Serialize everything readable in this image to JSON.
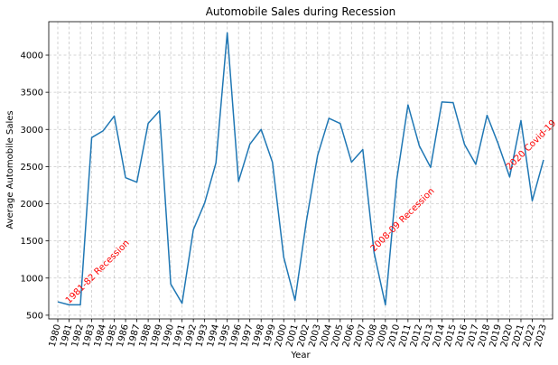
{
  "chart_data": {
    "type": "line",
    "title": "Automobile Sales during Recession",
    "xlabel": "Year",
    "ylabel": "Average Automobile Sales",
    "grid": true,
    "x": [
      1980,
      1981,
      1982,
      1983,
      1984,
      1985,
      1986,
      1987,
      1988,
      1989,
      1990,
      1991,
      1992,
      1993,
      1994,
      1995,
      1996,
      1997,
      1998,
      1999,
      2000,
      2001,
      2002,
      2003,
      2004,
      2005,
      2006,
      2007,
      2008,
      2009,
      2010,
      2011,
      2012,
      2013,
      2014,
      2015,
      2016,
      2017,
      2018,
      2019,
      2020,
      2021,
      2022,
      2023
    ],
    "xlim": [
      1979.2,
      2023.8
    ],
    "ylim": [
      450,
      4450
    ],
    "yticks": [
      500,
      1000,
      1500,
      2000,
      2500,
      3000,
      3500,
      4000
    ],
    "series": [
      {
        "color": "#1f77b4",
        "values": [
          680,
          640,
          640,
          2890,
          2980,
          3180,
          2350,
          2290,
          3080,
          3250,
          920,
          660,
          1650,
          2010,
          2550,
          4300,
          2300,
          2800,
          3000,
          2560,
          1280,
          700,
          1760,
          2650,
          3150,
          3080,
          2560,
          2730,
          1340,
          640,
          2320,
          3330,
          2780,
          2490,
          3370,
          3360,
          2800,
          2530,
          3190,
          2800,
          2360,
          3120,
          2040,
          2590
        ]
      }
    ],
    "annotations": [
      {
        "text": "1981-82 Recession",
        "x": 1981,
        "y": 650,
        "color": "#ff0000",
        "rotation": 45
      },
      {
        "text": "2008-09 Recession",
        "x": 2008,
        "y": 1350,
        "color": "#ff0000",
        "rotation": 45
      },
      {
        "text": "2020 Covid-19",
        "x": 2020,
        "y": 2450,
        "color": "#ff0000",
        "rotation": 45
      }
    ]
  }
}
